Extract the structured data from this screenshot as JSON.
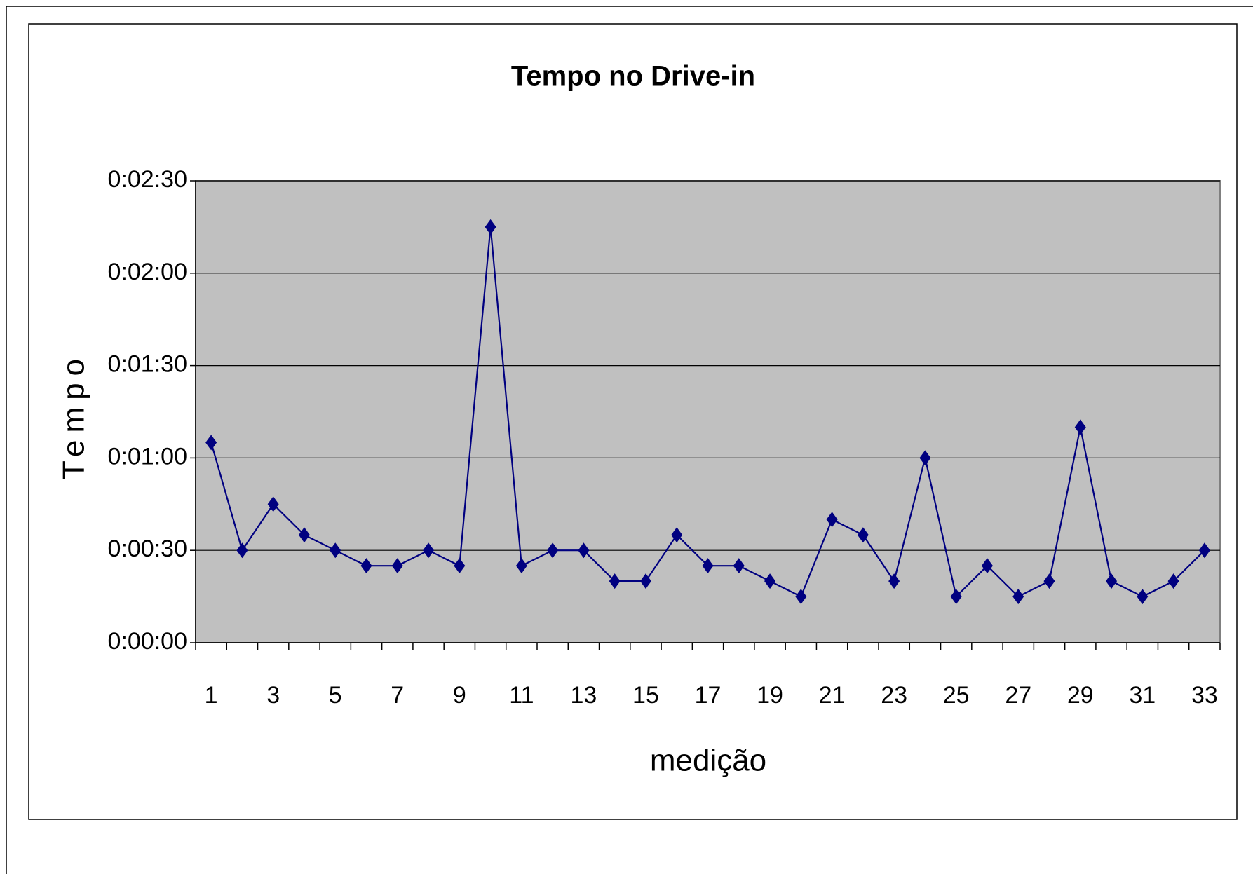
{
  "chart_data": {
    "type": "line",
    "title": "Tempo no Drive-in",
    "x_label": "medição",
    "y_label": "Tempo",
    "categories": [
      "1",
      null,
      "3",
      null,
      "5",
      null,
      "7",
      null,
      "9",
      null,
      "11",
      null,
      "13",
      null,
      "15",
      null,
      "17",
      null,
      "19",
      null,
      "21",
      null,
      "23",
      null,
      "25",
      null,
      "27",
      null,
      "29",
      null,
      "31",
      null,
      "33"
    ],
    "series": [
      {
        "name": "Tempo",
        "color": "#000080",
        "values": [
          65,
          30,
          45,
          35,
          30,
          25,
          25,
          30,
          25,
          135,
          25,
          30,
          30,
          20,
          20,
          35,
          25,
          25,
          20,
          15,
          40,
          35,
          20,
          60,
          15,
          25,
          15,
          20,
          70,
          20,
          15,
          20,
          30
        ]
      }
    ],
    "ylim": [
      0,
      150
    ],
    "yticks": [
      {
        "value": 0,
        "label": "0:00:00"
      },
      {
        "value": 30,
        "label": "0:00:30"
      },
      {
        "value": 60,
        "label": "0:01:00"
      },
      {
        "value": 90,
        "label": "0:01:30"
      },
      {
        "value": 120,
        "label": "0:02:00"
      },
      {
        "value": 150,
        "label": "0:02:30"
      }
    ],
    "grid": true,
    "plot_background": "#c0c0c0"
  }
}
